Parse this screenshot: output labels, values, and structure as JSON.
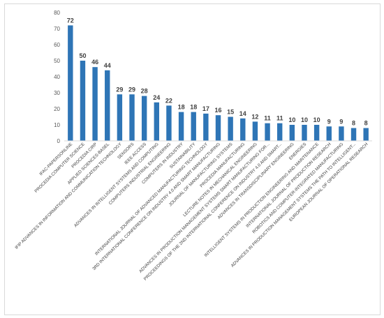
{
  "chart_data": {
    "type": "bar",
    "title": "",
    "xlabel": "",
    "ylabel": "",
    "ylim": [
      0,
      80
    ],
    "yticks": [
      0,
      10,
      20,
      30,
      40,
      50,
      60,
      70,
      80
    ],
    "grid": false,
    "legend": "none",
    "bar_color": "#2e75b6",
    "categories": [
      "IFAC-PAPERSONLINE",
      "PROCEDIA COMPUTER SCIENCE",
      "PROCEDIA CIRP",
      "APPLIED SCIENCES-BASEL",
      "IFIP ADVANCES IN INFORMATION AND COMMUNICATION TECHNOLOGY",
      "SENSORS",
      "IEEE ACCESS",
      "ADVANCES IN INTELLIGENT SYSTEMS AND COMPUTING",
      "COMPUTERS INDUSTRIAL ENGINEERING",
      "COMPUTERS IN INDUSTRY",
      "SUSTAINABILITY",
      "INTERNATIONAL JOURNAL OF ADVANCED MANUFACTURING TECHNOLOGY",
      "3RD INTERNATIONAL CONFERENCE ON INDUSTRY 4.0 AND SMART MANUFACTURING",
      "JOURNAL OF MANUFACTURING SYSTEMS",
      "PROCEDIA MANUFACTURING",
      "LECTURE NOTES IN MECHANICAL ENGINEERING",
      "ADVANCES IN PRODUCTION MANAGEMENT SYSTEMS SMART MANUFACTURING FOR...",
      "PROCEEDINGS OF THE 2ND INTERNATIONAL CONFERENCE ON INDUSTRY 4.0 AND SMART...",
      "ADVANCES IN TRANSDISCIPLINARY ENGINEERING",
      "ENERGIES",
      "INTELLIGENT SYSTEMS IN PRODUCTION ENGINEERING AND MAINTENANCE",
      "INTERNATIONAL JOURNAL OF PRODUCTION RESEARCH",
      "ROBOTICS AND COMPUTER-INTEGRATED MANUFACTURING",
      "ADVANCES IN PRODUCTION MANAGEMENT SYSTEMS THE PATH TO INTELLIGENT...",
      "EUROPEAN JOURNAL OF OPERATIONAL RESEARCH"
    ],
    "values": [
      72,
      50,
      46,
      44,
      29,
      29,
      28,
      24,
      22,
      18,
      18,
      17,
      16,
      15,
      14,
      12,
      11,
      11,
      10,
      10,
      10,
      9,
      9,
      8,
      8
    ]
  }
}
